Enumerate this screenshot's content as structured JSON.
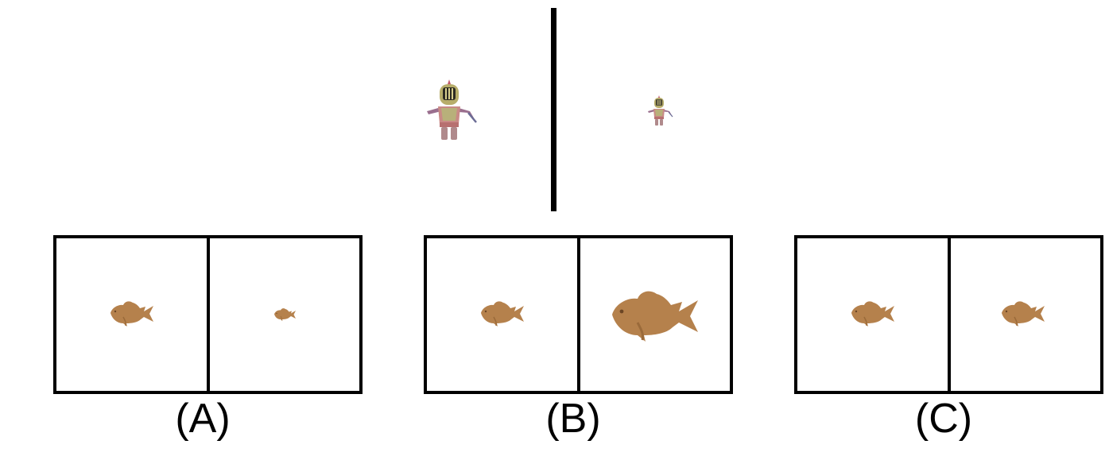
{
  "options": [
    {
      "label": "(A)"
    },
    {
      "label": "(B)"
    },
    {
      "label": "(C)"
    }
  ],
  "icons": {
    "figure": "knight-figure-icon",
    "fish": "fish-icon"
  },
  "colors": {
    "fish": "#b5814c",
    "fish_shade": "#9a6a3a",
    "helmet": "#b7ad6a",
    "body": "#c98a86",
    "divider": "#000000"
  }
}
